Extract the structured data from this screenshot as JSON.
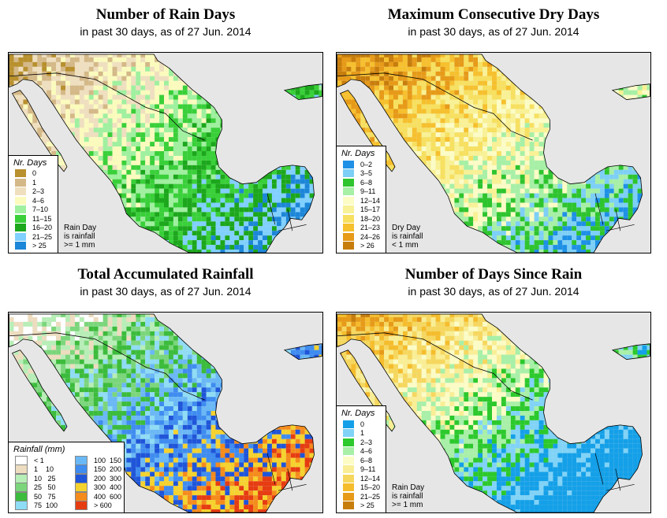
{
  "panels": [
    {
      "id": "rain-days",
      "title": "Number of Rain Days",
      "subtitle": "in past 30 days, as of  27 Jun. 2014",
      "legend": {
        "title": "Nr. Days",
        "items": [
          {
            "label": "0",
            "color": "#b8902e"
          },
          {
            "label": "1",
            "color": "#d4b887"
          },
          {
            "label": "2–3",
            "color": "#efdfbf"
          },
          {
            "label": "4–6",
            "color": "#fbfbbd"
          },
          {
            "label": "7–10",
            "color": "#9ff09f"
          },
          {
            "label": "11–15",
            "color": "#39d039"
          },
          {
            "label": "16–20",
            "color": "#1ca71c"
          },
          {
            "label": "21–25",
            "color": "#80d0ff"
          },
          {
            "label": "> 25",
            "color": "#1c86d8"
          }
        ]
      },
      "note": [
        "Rain Day",
        "is rainfall",
        ">= 1 mm"
      ]
    },
    {
      "id": "dry-days",
      "title": "Maximum Consecutive Dry Days",
      "subtitle": "in past 30 days, as of  27 Jun. 2014",
      "legend": {
        "title": "Nr. Days",
        "items": [
          {
            "label": "0–2",
            "color": "#1e90e6"
          },
          {
            "label": "3–5",
            "color": "#7ccff6"
          },
          {
            "label": "6–8",
            "color": "#2ec42e"
          },
          {
            "label": "9–11",
            "color": "#a6f0a6"
          },
          {
            "label": "12–14",
            "color": "#fcfcc6"
          },
          {
            "label": "15–17",
            "color": "#f9f195"
          },
          {
            "label": "18–20",
            "color": "#f7e060"
          },
          {
            "label": "21–23",
            "color": "#f6c02e"
          },
          {
            "label": "24–26",
            "color": "#e69a18"
          },
          {
            "label": "> 26",
            "color": "#c77d0c"
          }
        ]
      },
      "note": [
        "Dry Day",
        "is rainfall",
        "< 1 mm"
      ]
    },
    {
      "id": "rainfall",
      "title": "Total Accumulated Rainfall",
      "subtitle": "in past 30 days, as of  27 Jun. 2014",
      "legend": {
        "title": "Rainfall (mm)",
        "items": [
          {
            "label": "< 1",
            "color": "#ffffff"
          },
          {
            "label": "1    10",
            "color": "#eddcbf"
          },
          {
            "label": "10   25",
            "color": "#b7eeb7"
          },
          {
            "label": "25   50",
            "color": "#7bd67b"
          },
          {
            "label": "50   75",
            "color": "#3cbc3c"
          },
          {
            "label": "75  100",
            "color": "#8fdcf5"
          },
          {
            "label": "100  150",
            "color": "#6ab8f5"
          },
          {
            "label": "150  200",
            "color": "#3f8cf0"
          },
          {
            "label": "200  300",
            "color": "#1f55d9"
          },
          {
            "label": "300  400",
            "color": "#f5d22e"
          },
          {
            "label": "400  600",
            "color": "#f58b1c"
          },
          {
            "label": "> 600",
            "color": "#e63c12"
          }
        ]
      },
      "note": []
    },
    {
      "id": "since-rain",
      "title": "Number of Days Since Rain",
      "subtitle": "in past 30 days, as of  27 Jun. 2014",
      "legend": {
        "title": "Nr. Days",
        "items": [
          {
            "label": "0",
            "color": "#14a0e8"
          },
          {
            "label": "1",
            "color": "#80d3f7"
          },
          {
            "label": "2–3",
            "color": "#2cc92c"
          },
          {
            "label": "4–6",
            "color": "#a8f0a8"
          },
          {
            "label": "6–8",
            "color": "#fcfcc6"
          },
          {
            "label": "9–11",
            "color": "#f9ee95"
          },
          {
            "label": "12–14",
            "color": "#f6d75e"
          },
          {
            "label": "15–20",
            "color": "#f5bd2c"
          },
          {
            "label": "21–25",
            "color": "#e69a18"
          },
          {
            "label": "> 25",
            "color": "#c77d0c"
          }
        ]
      },
      "note": [
        "Rain Day",
        "is rainfall",
        ">= 1 mm"
      ]
    }
  ],
  "colors": {
    "ocean": "#e6e6e6",
    "border": "#000000"
  }
}
